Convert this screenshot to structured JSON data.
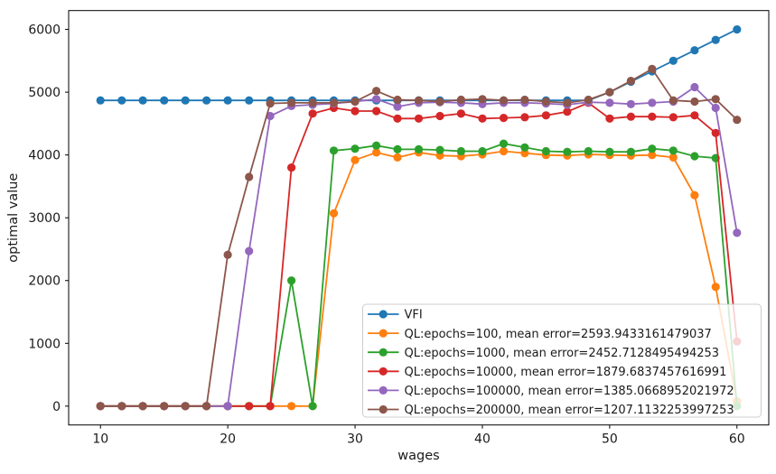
{
  "figure": {
    "background": "#ffffff",
    "text_color": "#1a1a1a",
    "spine_color": "#000000"
  },
  "chart_data": {
    "type": "line",
    "title": "",
    "xlabel": "wages",
    "ylabel": "optimal value",
    "xlim": [
      7.5,
      62.5
    ],
    "ylim": [
      -300,
      6300
    ],
    "grid": false,
    "marker": "circle",
    "legend": {
      "position": "inside-lower-right",
      "border_color": "#cccccc",
      "background": "#ffffff",
      "background_opacity": 0.8
    },
    "x_ticks": [
      "10",
      "20",
      "30",
      "40",
      "50",
      "60"
    ],
    "x_tick_values": [
      10,
      20,
      30,
      40,
      50,
      60
    ],
    "y_ticks": [
      "0",
      "1000",
      "2000",
      "3000",
      "4000",
      "5000",
      "6000"
    ],
    "y_tick_values": [
      0,
      1000,
      2000,
      3000,
      4000,
      5000,
      6000
    ],
    "x": [
      10,
      11.67,
      13.33,
      15,
      16.67,
      18.33,
      20,
      21.67,
      23.33,
      25,
      26.67,
      28.33,
      30,
      31.67,
      33.33,
      35,
      36.67,
      38.33,
      40,
      41.67,
      43.33,
      45,
      46.67,
      48.33,
      50,
      51.67,
      53.33,
      55,
      56.67,
      58.33,
      60
    ],
    "series": [
      {
        "key": "vfi",
        "label": "VFI",
        "color": "#1f77b4",
        "values": [
          4870,
          4870,
          4870,
          4870,
          4870,
          4870,
          4870,
          4870,
          4870,
          4870,
          4870,
          4870,
          4870,
          4870,
          4870,
          4870,
          4870,
          4870,
          4870,
          4870,
          4870,
          4870,
          4870,
          4870,
          5000,
          5167,
          5333,
          5500,
          5667,
          5833,
          6000
        ]
      },
      {
        "key": "ql-epochs-100",
        "label": "QL:epochs=100, mean error=2593.9433161479037",
        "color": "#ff7f0e",
        "values": [
          0,
          0,
          0,
          0,
          0,
          0,
          0,
          0,
          0,
          0,
          0,
          3070,
          3920,
          4040,
          3960,
          4040,
          3990,
          3980,
          4010,
          4060,
          4030,
          4000,
          3990,
          4010,
          4000,
          3990,
          4000,
          3960,
          3360,
          1900,
          80
        ]
      },
      {
        "key": "ql-epochs-1000",
        "label": "QL:epochs=1000, mean error=2452.7128495494253",
        "color": "#2ca02c",
        "values": [
          0,
          0,
          0,
          0,
          0,
          0,
          0,
          0,
          0,
          2000,
          0,
          4070,
          4100,
          4150,
          4090,
          4090,
          4080,
          4060,
          4060,
          4180,
          4120,
          4060,
          4050,
          4060,
          4050,
          4050,
          4100,
          4070,
          3980,
          3950,
          0
        ]
      },
      {
        "key": "ql-epochs-10000",
        "label": "QL:epochs=10000, mean error=1879.6837457616991",
        "color": "#d62728",
        "values": [
          0,
          0,
          0,
          0,
          0,
          0,
          0,
          0,
          0,
          3800,
          4660,
          4750,
          4700,
          4700,
          4580,
          4580,
          4620,
          4660,
          4580,
          4590,
          4600,
          4630,
          4690,
          4830,
          4580,
          4610,
          4610,
          4600,
          4630,
          4350,
          1030
        ]
      },
      {
        "key": "ql-epochs-100000",
        "label": "QL:epochs=100000, mean error=1385.0668952021972",
        "color": "#9467bd",
        "values": [
          0,
          0,
          0,
          0,
          0,
          0,
          0,
          2470,
          4620,
          4780,
          4800,
          4820,
          4850,
          4890,
          4770,
          4830,
          4840,
          4830,
          4810,
          4830,
          4830,
          4820,
          4800,
          4840,
          4830,
          4810,
          4830,
          4850,
          5080,
          4750,
          2760
        ]
      },
      {
        "key": "ql-epochs-200000",
        "label": "QL:epochs=200000, mean error=1207.1132253997253",
        "color": "#8c564b",
        "values": [
          0,
          0,
          0,
          0,
          0,
          0,
          2410,
          3650,
          4820,
          4830,
          4830,
          4830,
          4850,
          5020,
          4880,
          4870,
          4850,
          4880,
          4890,
          4870,
          4880,
          4850,
          4830,
          4880,
          5000,
          5180,
          5370,
          4870,
          4850,
          4890,
          4560
        ]
      }
    ]
  }
}
